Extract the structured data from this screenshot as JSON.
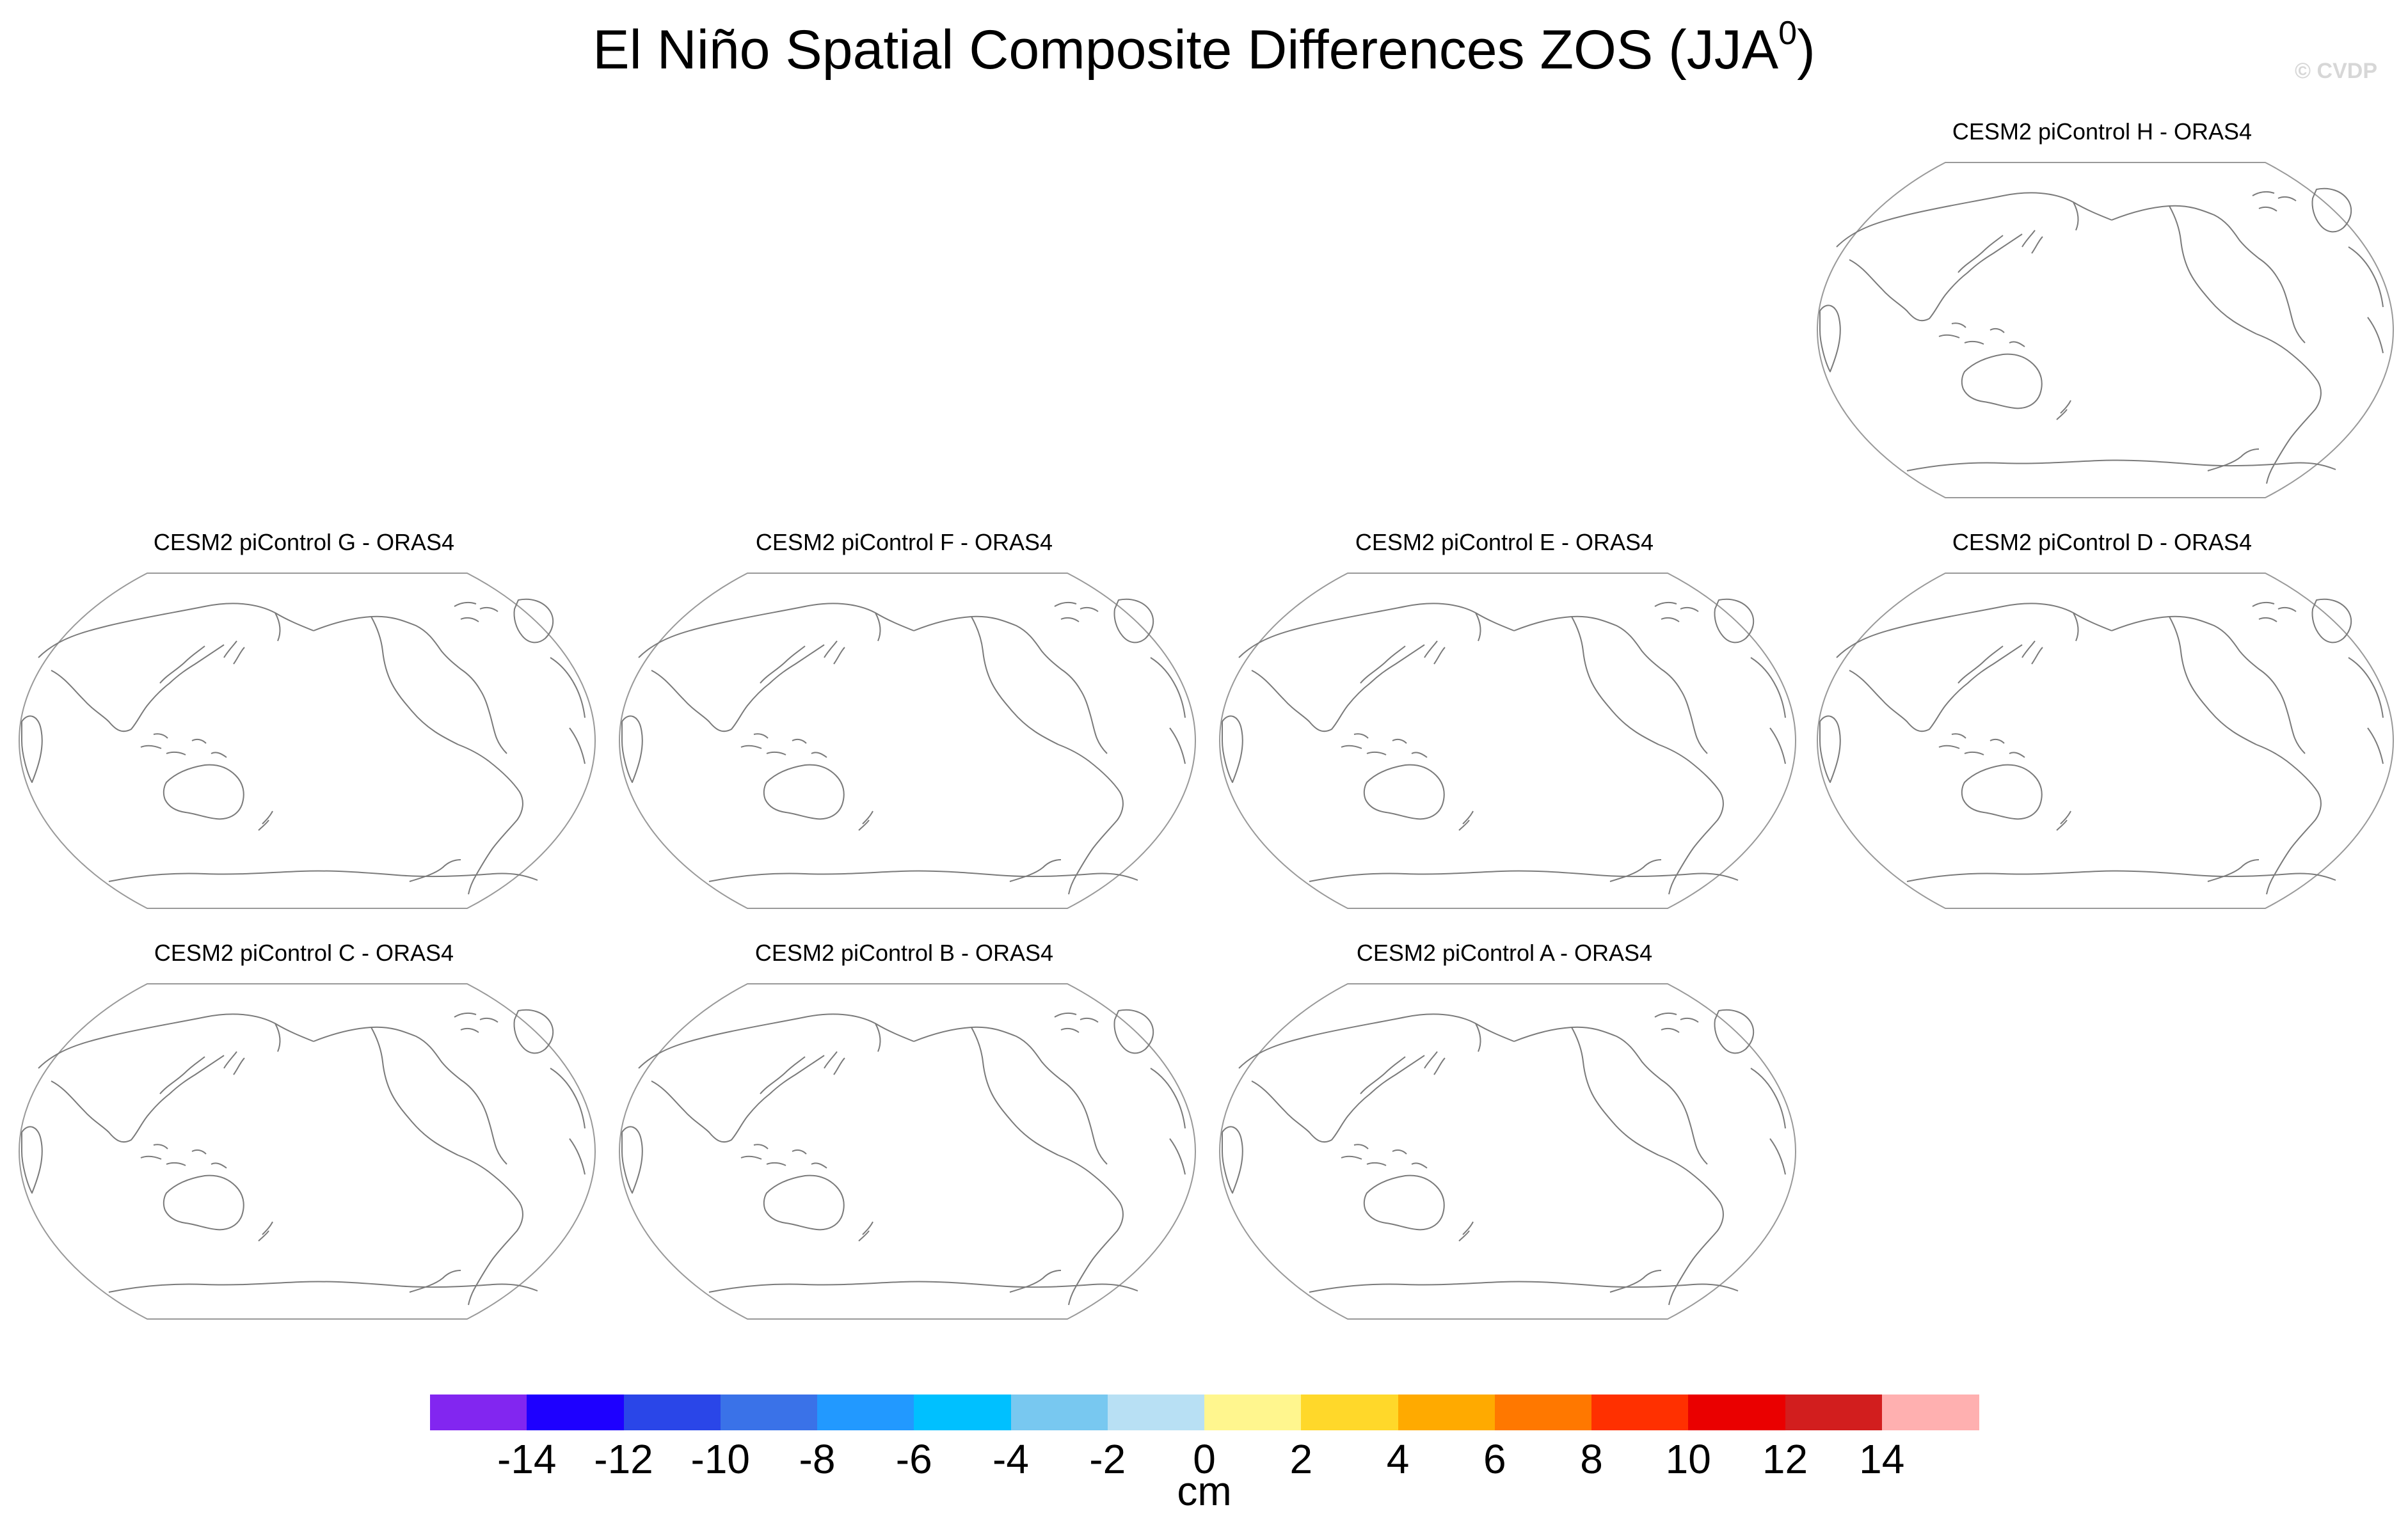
{
  "figure": {
    "title_main": "El Niño Spatial Composite Differences ZOS (JJA",
    "title_sup": "0",
    "title_end": ")",
    "watermark": "© CVDP"
  },
  "panels": {
    "h": {
      "title": "CESM2 piControl H - ORAS4"
    },
    "g": {
      "title": "CESM2 piControl G - ORAS4"
    },
    "f": {
      "title": "CESM2 piControl F - ORAS4"
    },
    "e": {
      "title": "CESM2 piControl E - ORAS4"
    },
    "d": {
      "title": "CESM2 piControl D - ORAS4"
    },
    "c": {
      "title": "CESM2 piControl C - ORAS4"
    },
    "b": {
      "title": "CESM2 piControl B - ORAS4"
    },
    "a": {
      "title": "CESM2 piControl A - ORAS4"
    }
  },
  "colorbar": {
    "unit": "cm",
    "ticks": [
      "-14",
      "-12",
      "-10",
      "-8",
      "-6",
      "-4",
      "-2",
      "0",
      "2",
      "4",
      "6",
      "8",
      "10",
      "12",
      "14"
    ],
    "colors": [
      "#8226f0",
      "#1e00ff",
      "#2a46e8",
      "#3a72e8",
      "#2299ff",
      "#00c0ff",
      "#78c8f0",
      "#b8e0f4",
      "#fff68e",
      "#ffd82a",
      "#ffaa00",
      "#ff7800",
      "#ff3000",
      "#ea0000",
      "#d21e1e",
      "#ffb0b0"
    ]
  }
}
